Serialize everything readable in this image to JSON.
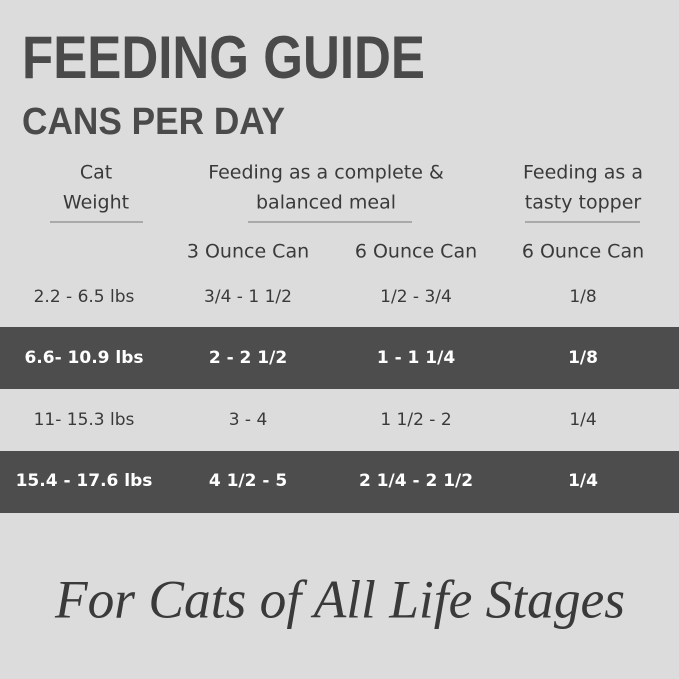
{
  "header": {
    "title": "FEEDING GUIDE",
    "subtitle": "CANS PER DAY"
  },
  "table": {
    "group_headers": [
      {
        "lines": [
          "Cat",
          "Weight"
        ]
      },
      {
        "lines": [
          "Feeding as a complete &",
          "balanced meal"
        ]
      },
      {
        "lines": [
          "Feeding as a",
          "tasty topper"
        ]
      }
    ],
    "sub_headers": [
      "3 Ounce Can",
      "6 Ounce Can",
      "6 Ounce Can"
    ],
    "rows": [
      [
        "2.2 - 6.5 lbs",
        "3/4 - 1 1/2",
        "1/2 - 3/4",
        "1/8"
      ],
      [
        "6.6- 10.9 lbs",
        "2 - 2 1/2",
        "1 - 1 1/4",
        "1/8"
      ],
      [
        "11- 15.3 lbs",
        "3 - 4",
        "1 1/2 - 2",
        "1/4"
      ],
      [
        "15.4 - 17.6 lbs",
        "4 1/2 - 5",
        "2 1/4 - 2 1/2",
        "1/4"
      ]
    ]
  },
  "footer": {
    "tagline": "For Cats of All Life Stages"
  }
}
